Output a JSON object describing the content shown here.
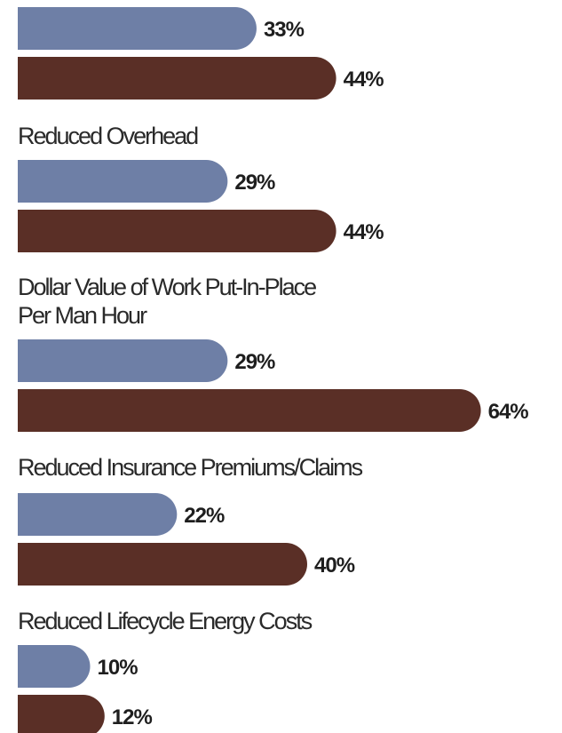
{
  "chart_data": {
    "type": "bar",
    "orientation": "horizontal",
    "categories": [
      "",
      "Reduced Overhead",
      "Dollar Value of Work Put-In-Place\nPer Man Hour",
      "Reduced Insurance Premiums/Claims",
      "Reduced Lifecycle Energy Costs"
    ],
    "series": [
      {
        "color": "#6e7fa6",
        "values": [
          33,
          29,
          29,
          22,
          10
        ]
      },
      {
        "color": "#5a2f26",
        "values": [
          44,
          44,
          64,
          40,
          12
        ]
      }
    ],
    "value_format": "{v}%",
    "xlim": [
      0,
      64
    ],
    "grid": false,
    "legend": "none"
  }
}
